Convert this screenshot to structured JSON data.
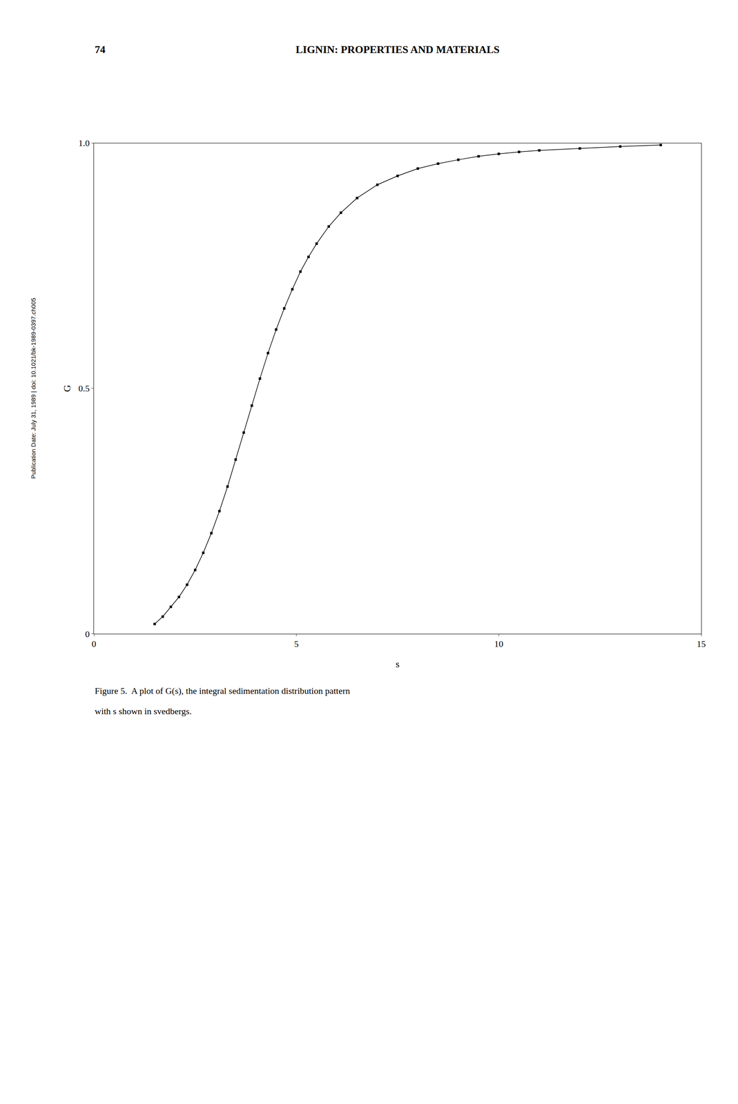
{
  "chart_data": {
    "type": "line",
    "xlabel": "s",
    "ylabel": "G",
    "annotations": [
      "74",
      "LIGNIN: PROPERTIES AND MATERIALS",
      "Publication Date: July 31, 1989 | doi: 10.1021/bk-1989-0397.ch005",
      "Figure 5.  A plot of G(s), the integral sedimentation distribution pattern",
      "with s shown in svedbergs."
    ],
    "x": [
      1.5,
      1.7,
      1.9,
      2.1,
      2.3,
      2.5,
      2.7,
      2.9,
      3.1,
      3.3,
      3.5,
      3.7,
      3.9,
      4.1,
      4.3,
      4.5,
      4.7,
      4.9,
      5.1,
      5.3,
      5.5,
      5.8,
      6.1,
      6.5,
      7.0,
      7.5,
      8.0,
      8.5,
      9.0,
      9.5,
      10.0,
      10.5,
      11.0,
      12.0,
      13.0,
      14.0
    ],
    "values": [
      0.02,
      0.035,
      0.055,
      0.075,
      0.1,
      0.13,
      0.165,
      0.205,
      0.25,
      0.3,
      0.355,
      0.41,
      0.465,
      0.52,
      0.572,
      0.62,
      0.663,
      0.702,
      0.738,
      0.768,
      0.795,
      0.83,
      0.858,
      0.888,
      0.915,
      0.933,
      0.948,
      0.958,
      0.966,
      0.973,
      0.978,
      0.982,
      0.985,
      0.989,
      0.993,
      0.996
    ],
    "color": "#000000",
    "marker": "square",
    "xlim": [
      0,
      15
    ],
    "ylim": [
      0,
      1.0
    ],
    "xticks": [
      0,
      5,
      10,
      15
    ],
    "yticks": [
      0,
      0.5,
      {
        "value": 1.0,
        "label": "1.0"
      }
    ],
    "grid": false
  }
}
